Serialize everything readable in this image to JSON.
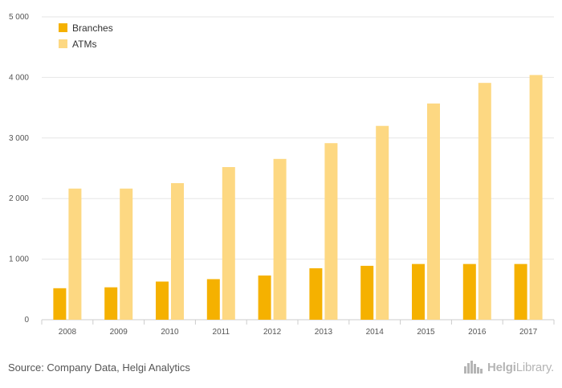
{
  "chart_data": {
    "type": "bar",
    "categories": [
      "2008",
      "2009",
      "2010",
      "2011",
      "2012",
      "2013",
      "2014",
      "2015",
      "2016",
      "2017"
    ],
    "series": [
      {
        "name": "Branches",
        "color": "#f5b100",
        "values": [
          520,
          535,
          630,
          670,
          730,
          850,
          890,
          920,
          920,
          920
        ]
      },
      {
        "name": "ATMs",
        "color": "#fdd882",
        "values": [
          2165,
          2165,
          2255,
          2520,
          2655,
          2915,
          3200,
          3570,
          3910,
          4040
        ]
      }
    ],
    "ylim": [
      0,
      5000
    ],
    "yticks": [
      0,
      1000,
      2000,
      3000,
      4000,
      5000
    ],
    "ytick_labels": [
      "0",
      "1 000",
      "2 000",
      "3 000",
      "4 000",
      "5 000"
    ],
    "grid": true,
    "legend": "top-left",
    "title": "",
    "xlabel": "",
    "ylabel": ""
  },
  "footer": {
    "source": "Source: Company Data, Helgi Analytics",
    "logo_bold": "Helgi",
    "logo_rest": "Library."
  },
  "colors": {
    "grid": "#e6e6e6",
    "axis": "#cccccc",
    "logo": "#b5b5b5"
  }
}
